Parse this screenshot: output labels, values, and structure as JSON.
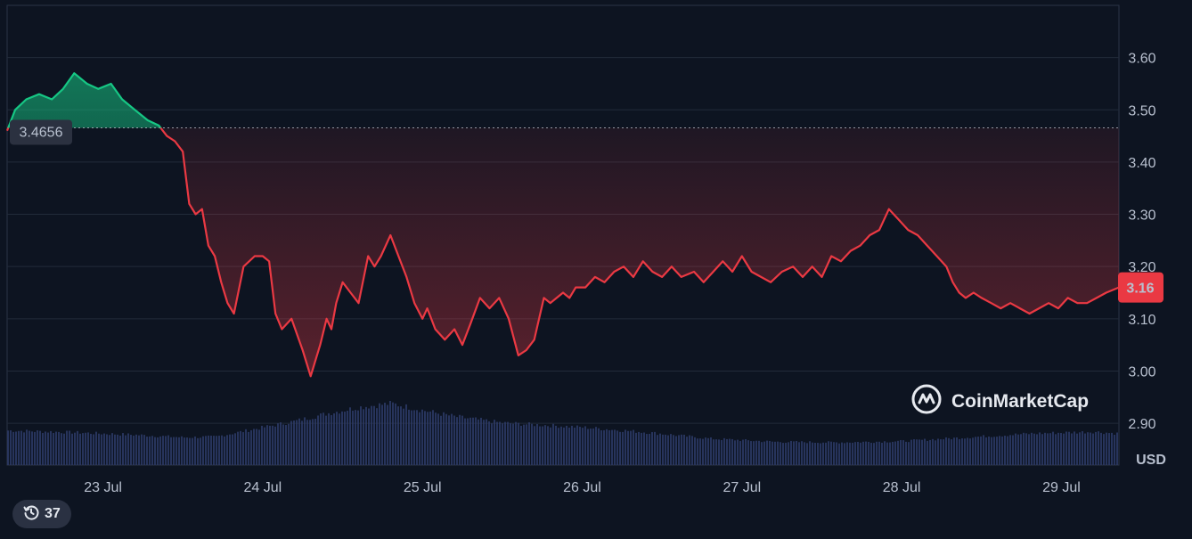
{
  "chart_data": {
    "type": "area",
    "currency_label": "USD",
    "baseline_label": "3.4656",
    "baseline_value": 3.4656,
    "current_price_label": "3.16",
    "current_price": 3.16,
    "ylim": [
      2.82,
      3.7
    ],
    "y_ticks": [
      "3.60",
      "3.50",
      "3.40",
      "3.30",
      "3.20",
      "3.10",
      "3.00",
      "2.90"
    ],
    "y_tick_values": [
      3.6,
      3.5,
      3.4,
      3.3,
      3.2,
      3.1,
      3.0,
      2.9
    ],
    "x_ticks": [
      "23 Jul",
      "24 Jul",
      "25 Jul",
      "26 Jul",
      "27 Jul",
      "28 Jul",
      "29 Jul"
    ],
    "x_tick_day": [
      1,
      2,
      3,
      4,
      5,
      6,
      7
    ],
    "xlim_day": [
      0.4,
      7.36
    ],
    "price_series": {
      "x_day": [
        0.4,
        0.45,
        0.52,
        0.6,
        0.68,
        0.75,
        0.82,
        0.9,
        0.97,
        1.05,
        1.12,
        1.2,
        1.28,
        1.35,
        1.4,
        1.45,
        1.5,
        1.54,
        1.58,
        1.62,
        1.66,
        1.7,
        1.74,
        1.78,
        1.82,
        1.88,
        1.95,
        2.0,
        2.04,
        2.08,
        2.12,
        2.18,
        2.25,
        2.3,
        2.36,
        2.4,
        2.43,
        2.46,
        2.5,
        2.55,
        2.6,
        2.66,
        2.7,
        2.74,
        2.8,
        2.85,
        2.9,
        2.95,
        3.0,
        3.03,
        3.08,
        3.14,
        3.2,
        3.25,
        3.3,
        3.36,
        3.42,
        3.48,
        3.54,
        3.6,
        3.65,
        3.7,
        3.73,
        3.76,
        3.8,
        3.84,
        3.88,
        3.92,
        3.96,
        4.02,
        4.08,
        4.14,
        4.2,
        4.26,
        4.32,
        4.38,
        4.44,
        4.5,
        4.56,
        4.62,
        4.7,
        4.76,
        4.82,
        4.88,
        4.94,
        5.0,
        5.06,
        5.12,
        5.18,
        5.25,
        5.32,
        5.38,
        5.44,
        5.5,
        5.56,
        5.62,
        5.68,
        5.74,
        5.8,
        5.86,
        5.92,
        5.98,
        6.04,
        6.1,
        6.16,
        6.22,
        6.28,
        6.32,
        6.36,
        6.4,
        6.45,
        6.5,
        6.56,
        6.62,
        6.68,
        6.74,
        6.8,
        6.86,
        6.92,
        6.98,
        7.04,
        7.1,
        7.16,
        7.22,
        7.28,
        7.36
      ],
      "y": [
        3.46,
        3.5,
        3.52,
        3.53,
        3.52,
        3.54,
        3.57,
        3.55,
        3.54,
        3.55,
        3.52,
        3.5,
        3.48,
        3.47,
        3.45,
        3.44,
        3.42,
        3.32,
        3.3,
        3.31,
        3.24,
        3.22,
        3.17,
        3.13,
        3.11,
        3.2,
        3.22,
        3.22,
        3.21,
        3.11,
        3.08,
        3.1,
        3.04,
        2.99,
        3.05,
        3.1,
        3.08,
        3.13,
        3.17,
        3.15,
        3.13,
        3.22,
        3.2,
        3.22,
        3.26,
        3.22,
        3.18,
        3.13,
        3.1,
        3.12,
        3.08,
        3.06,
        3.08,
        3.05,
        3.09,
        3.14,
        3.12,
        3.14,
        3.1,
        3.03,
        3.04,
        3.06,
        3.1,
        3.14,
        3.13,
        3.14,
        3.15,
        3.14,
        3.16,
        3.16,
        3.18,
        3.17,
        3.19,
        3.2,
        3.18,
        3.21,
        3.19,
        3.18,
        3.2,
        3.18,
        3.19,
        3.17,
        3.19,
        3.21,
        3.19,
        3.22,
        3.19,
        3.18,
        3.17,
        3.19,
        3.2,
        3.18,
        3.2,
        3.18,
        3.22,
        3.21,
        3.23,
        3.24,
        3.26,
        3.27,
        3.31,
        3.29,
        3.27,
        3.26,
        3.24,
        3.22,
        3.2,
        3.17,
        3.15,
        3.14,
        3.15,
        3.14,
        3.13,
        3.12,
        3.13,
        3.12,
        3.11,
        3.12,
        3.13,
        3.12,
        3.14,
        3.13,
        3.13,
        3.14,
        3.15,
        3.16
      ]
    },
    "volume_series": {
      "x_day": [
        0.4,
        0.8,
        1.2,
        1.5,
        1.7,
        2.0,
        2.2,
        2.4,
        2.6,
        2.8,
        3.0,
        3.2,
        3.5,
        4.0,
        4.4,
        4.8,
        5.2,
        5.6,
        6.0,
        6.4,
        6.8,
        7.2,
        7.36
      ],
      "relative_height": [
        0.55,
        0.52,
        0.48,
        0.44,
        0.45,
        0.6,
        0.7,
        0.82,
        0.92,
        0.98,
        0.87,
        0.77,
        0.67,
        0.6,
        0.52,
        0.42,
        0.37,
        0.36,
        0.38,
        0.44,
        0.5,
        0.53,
        0.5
      ]
    }
  },
  "watermark": {
    "brand": "CoinMarketCap"
  },
  "history_badge": {
    "count": "37"
  }
}
